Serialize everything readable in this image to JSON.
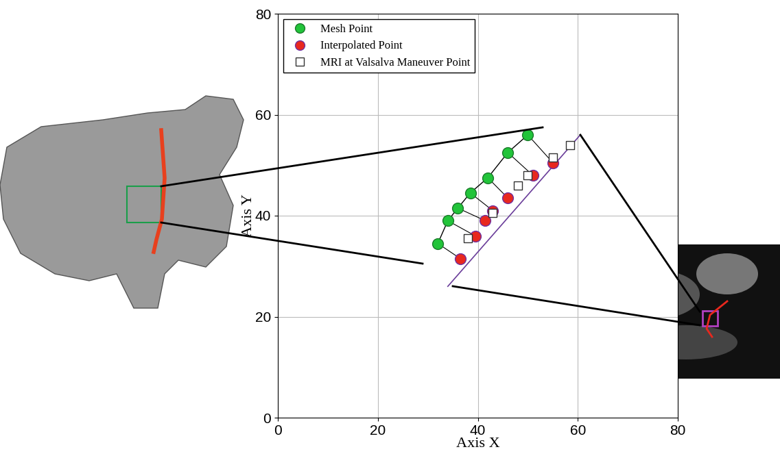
{
  "chart_data": {
    "type": "scatter",
    "xlabel": "Axis X",
    "ylabel": "Axis Y",
    "xlim": [
      0,
      80
    ],
    "ylim": [
      0,
      80
    ],
    "xticks": [
      0,
      20,
      40,
      60,
      80
    ],
    "yticks": [
      0,
      20,
      40,
      60,
      80
    ],
    "grid": true,
    "legend": "upper left",
    "series": [
      {
        "name": "Mesh Point",
        "color": "#22c43a",
        "marker": "circle",
        "line_style": "solid",
        "x": [
          32,
          34,
          36,
          38.5,
          42,
          46,
          50
        ],
        "y": [
          34.5,
          39,
          41.5,
          44.5,
          47.5,
          52.5,
          56
        ]
      },
      {
        "name": "Interpolated Point",
        "color": "#e8281e",
        "marker": "circle",
        "x": [
          36.5,
          39.5,
          41.5,
          43,
          46,
          51,
          55
        ],
        "y": [
          31.5,
          36,
          39,
          41,
          43.5,
          48,
          50.5
        ]
      },
      {
        "name": "MRI at Valsalva Maneuver Point",
        "color": "#ffffff",
        "marker": "square",
        "x": [
          38,
          43,
          48,
          50,
          55,
          58.5
        ],
        "y": [
          35.5,
          40.5,
          46,
          48,
          51.5,
          54
        ]
      },
      {
        "color": "#6a3d9a",
        "marker": "none",
        "line_style": "solid",
        "x": [
          34,
          60.5
        ],
        "y": [
          26,
          56
        ]
      }
    ]
  }
}
